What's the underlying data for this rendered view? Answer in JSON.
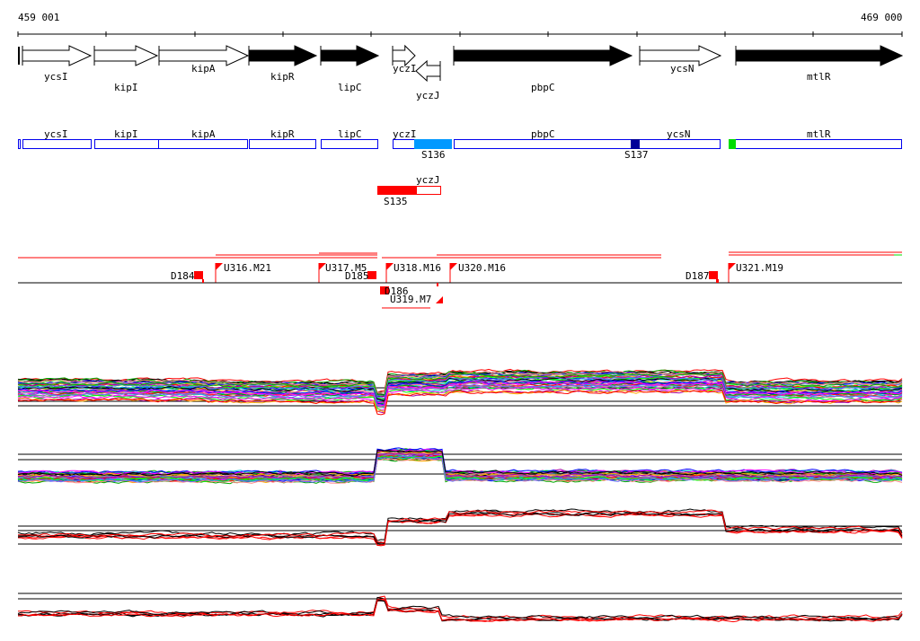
{
  "coordinates": {
    "start": "459 001",
    "end": "469 000"
  },
  "genes": [
    {
      "name": "ycsI",
      "strand": "+",
      "filled": false
    },
    {
      "name": "kipI",
      "strand": "+",
      "filled": false
    },
    {
      "name": "kipA",
      "strand": "+",
      "filled": false
    },
    {
      "name": "kipR",
      "strand": "+",
      "filled": true
    },
    {
      "name": "lipC",
      "strand": "+",
      "filled": true
    },
    {
      "name": "yczI",
      "strand": "+",
      "filled": false
    },
    {
      "name": "yczJ",
      "strand": "-",
      "filled": false
    },
    {
      "name": "pbpC",
      "strand": "+",
      "filled": true
    },
    {
      "name": "ycsN",
      "strand": "+",
      "filled": false
    },
    {
      "name": "mtlR",
      "strand": "+",
      "filled": true
    }
  ],
  "segments": {
    "S136": "S136",
    "S137": "S137",
    "S135": "S135"
  },
  "segment_colors": {
    "S136": "#0099ff",
    "S137": "#000099",
    "S135": "#ff0000",
    "green": "#00dd00"
  },
  "features": {
    "D184": "D184",
    "U316": "U316.M21",
    "U317": "U317.M5",
    "D185": "D185",
    "U318": "U318.M16",
    "D186": "D186",
    "U319": "U319.M7",
    "U320": "U320.M16",
    "D187": "D187",
    "U321": "U321.M19"
  }
}
